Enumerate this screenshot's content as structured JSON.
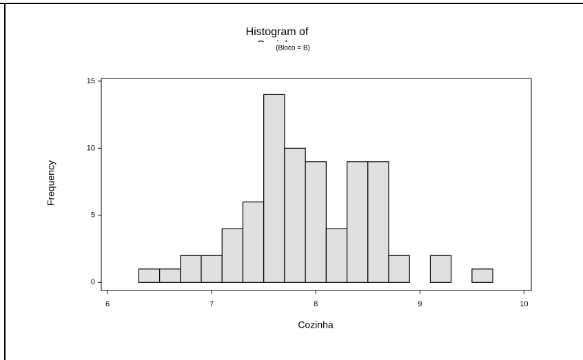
{
  "chart_data": {
    "type": "histogram",
    "title": [
      "Histogram of",
      "Cozinha"
    ],
    "subtitle": "(Bloco = B)",
    "x_label": "Cozinha",
    "y_label": "Frequency",
    "bins": [
      6.1,
      6.3,
      6.5,
      6.7,
      6.9,
      7.1,
      7.3,
      7.5,
      7.7,
      7.9,
      8.1,
      8.3,
      8.5,
      8.7,
      8.9,
      9.1,
      9.3,
      9.5,
      9.7
    ],
    "values": [
      0,
      1,
      1,
      2,
      2,
      4,
      6,
      14,
      10,
      9,
      4,
      9,
      9,
      2,
      0,
      2,
      0,
      1
    ],
    "color": "#e0e0e0",
    "xlim": [
      5.94,
      10.07
    ],
    "xticks": [
      6,
      7,
      8,
      9,
      10
    ],
    "ylim": [
      -0.6,
      15.2
    ],
    "yticks": [
      0,
      5,
      10,
      15
    ]
  }
}
